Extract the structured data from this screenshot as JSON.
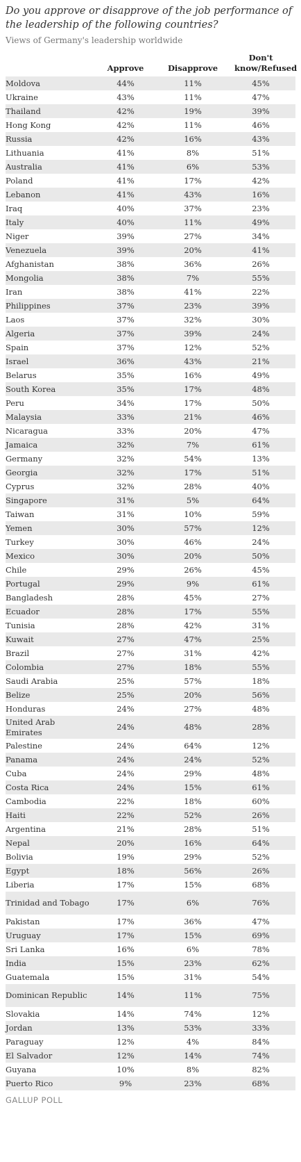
{
  "chart_data": {
    "type": "table",
    "title": "Do you approve or disapprove of the job performance of the leadership of the following countries?",
    "subtitle": "Views of Germany's leadership worldwide",
    "columns": [
      "Approve",
      "Disapprove",
      "Don't know/Refused"
    ],
    "rows": [
      {
        "country": "Moldova",
        "approve": "44%",
        "disapprove": "11%",
        "dk": "45%"
      },
      {
        "country": "Ukraine",
        "approve": "43%",
        "disapprove": "11%",
        "dk": "47%"
      },
      {
        "country": "Thailand",
        "approve": "42%",
        "disapprove": "19%",
        "dk": "39%"
      },
      {
        "country": "Hong Kong",
        "approve": "42%",
        "disapprove": "11%",
        "dk": "46%"
      },
      {
        "country": "Russia",
        "approve": "42%",
        "disapprove": "16%",
        "dk": "43%"
      },
      {
        "country": "Lithuania",
        "approve": "41%",
        "disapprove": "8%",
        "dk": "51%"
      },
      {
        "country": "Australia",
        "approve": "41%",
        "disapprove": "6%",
        "dk": "53%"
      },
      {
        "country": "Poland",
        "approve": "41%",
        "disapprove": "17%",
        "dk": "42%"
      },
      {
        "country": "Lebanon",
        "approve": "41%",
        "disapprove": "43%",
        "dk": "16%"
      },
      {
        "country": "Iraq",
        "approve": "40%",
        "disapprove": "37%",
        "dk": "23%"
      },
      {
        "country": "Italy",
        "approve": "40%",
        "disapprove": "11%",
        "dk": "49%"
      },
      {
        "country": "Niger",
        "approve": "39%",
        "disapprove": "27%",
        "dk": "34%"
      },
      {
        "country": "Venezuela",
        "approve": "39%",
        "disapprove": "20%",
        "dk": "41%"
      },
      {
        "country": "Afghanistan",
        "approve": "38%",
        "disapprove": "36%",
        "dk": "26%"
      },
      {
        "country": "Mongolia",
        "approve": "38%",
        "disapprove": "7%",
        "dk": "55%"
      },
      {
        "country": "Iran",
        "approve": "38%",
        "disapprove": "41%",
        "dk": "22%"
      },
      {
        "country": "Philippines",
        "approve": "37%",
        "disapprove": "23%",
        "dk": "39%"
      },
      {
        "country": "Laos",
        "approve": "37%",
        "disapprove": "32%",
        "dk": "30%"
      },
      {
        "country": "Algeria",
        "approve": "37%",
        "disapprove": "39%",
        "dk": "24%"
      },
      {
        "country": "Spain",
        "approve": "37%",
        "disapprove": "12%",
        "dk": "52%"
      },
      {
        "country": "Israel",
        "approve": "36%",
        "disapprove": "43%",
        "dk": "21%"
      },
      {
        "country": "Belarus",
        "approve": "35%",
        "disapprove": "16%",
        "dk": "49%"
      },
      {
        "country": "South Korea",
        "approve": "35%",
        "disapprove": "17%",
        "dk": "48%"
      },
      {
        "country": "Peru",
        "approve": "34%",
        "disapprove": "17%",
        "dk": "50%"
      },
      {
        "country": "Malaysia",
        "approve": "33%",
        "disapprove": "21%",
        "dk": "46%"
      },
      {
        "country": "Nicaragua",
        "approve": "33%",
        "disapprove": "20%",
        "dk": "47%"
      },
      {
        "country": "Jamaica",
        "approve": "32%",
        "disapprove": "7%",
        "dk": "61%"
      },
      {
        "country": "Germany",
        "approve": "32%",
        "disapprove": "54%",
        "dk": "13%"
      },
      {
        "country": "Georgia",
        "approve": "32%",
        "disapprove": "17%",
        "dk": "51%"
      },
      {
        "country": "Cyprus",
        "approve": "32%",
        "disapprove": "28%",
        "dk": "40%"
      },
      {
        "country": "Singapore",
        "approve": "31%",
        "disapprove": "5%",
        "dk": "64%"
      },
      {
        "country": "Taiwan",
        "approve": "31%",
        "disapprove": "10%",
        "dk": "59%"
      },
      {
        "country": "Yemen",
        "approve": "30%",
        "disapprove": "57%",
        "dk": "12%"
      },
      {
        "country": "Turkey",
        "approve": "30%",
        "disapprove": "46%",
        "dk": "24%"
      },
      {
        "country": "Mexico",
        "approve": "30%",
        "disapprove": "20%",
        "dk": "50%"
      },
      {
        "country": "Chile",
        "approve": "29%",
        "disapprove": "26%",
        "dk": "45%"
      },
      {
        "country": "Portugal",
        "approve": "29%",
        "disapprove": "9%",
        "dk": "61%"
      },
      {
        "country": "Bangladesh",
        "approve": "28%",
        "disapprove": "45%",
        "dk": "27%"
      },
      {
        "country": "Ecuador",
        "approve": "28%",
        "disapprove": "17%",
        "dk": "55%"
      },
      {
        "country": "Tunisia",
        "approve": "28%",
        "disapprove": "42%",
        "dk": "31%"
      },
      {
        "country": "Kuwait",
        "approve": "27%",
        "disapprove": "47%",
        "dk": "25%"
      },
      {
        "country": "Brazil",
        "approve": "27%",
        "disapprove": "31%",
        "dk": "42%"
      },
      {
        "country": "Colombia",
        "approve": "27%",
        "disapprove": "18%",
        "dk": "55%"
      },
      {
        "country": "Saudi Arabia",
        "approve": "25%",
        "disapprove": "57%",
        "dk": "18%"
      },
      {
        "country": "Belize",
        "approve": "25%",
        "disapprove": "20%",
        "dk": "56%"
      },
      {
        "country": "Honduras",
        "approve": "24%",
        "disapprove": "27%",
        "dk": "48%"
      },
      {
        "country": "United Arab Emirates",
        "approve": "24%",
        "disapprove": "48%",
        "dk": "28%"
      },
      {
        "country": "Palestine",
        "approve": "24%",
        "disapprove": "64%",
        "dk": "12%"
      },
      {
        "country": "Panama",
        "approve": "24%",
        "disapprove": "24%",
        "dk": "52%"
      },
      {
        "country": "Cuba",
        "approve": "24%",
        "disapprove": "29%",
        "dk": "48%"
      },
      {
        "country": "Costa Rica",
        "approve": "24%",
        "disapprove": "15%",
        "dk": "61%"
      },
      {
        "country": "Cambodia",
        "approve": "22%",
        "disapprove": "18%",
        "dk": "60%"
      },
      {
        "country": "Haiti",
        "approve": "22%",
        "disapprove": "52%",
        "dk": "26%"
      },
      {
        "country": "Argentina",
        "approve": "21%",
        "disapprove": "28%",
        "dk": "51%"
      },
      {
        "country": "Nepal",
        "approve": "20%",
        "disapprove": "16%",
        "dk": "64%"
      },
      {
        "country": "Bolivia",
        "approve": "19%",
        "disapprove": "29%",
        "dk": "52%"
      },
      {
        "country": "Egypt",
        "approve": "18%",
        "disapprove": "56%",
        "dk": "26%"
      },
      {
        "country": "Liberia",
        "approve": "17%",
        "disapprove": "15%",
        "dk": "68%"
      },
      {
        "country": "Trinidad and Tobago",
        "approve": "17%",
        "disapprove": "6%",
        "dk": "76%"
      },
      {
        "country": "Pakistan",
        "approve": "17%",
        "disapprove": "36%",
        "dk": "47%"
      },
      {
        "country": "Uruguay",
        "approve": "17%",
        "disapprove": "15%",
        "dk": "69%"
      },
      {
        "country": "Sri Lanka",
        "approve": "16%",
        "disapprove": "6%",
        "dk": "78%"
      },
      {
        "country": "India",
        "approve": "15%",
        "disapprove": "23%",
        "dk": "62%"
      },
      {
        "country": "Guatemala",
        "approve": "15%",
        "disapprove": "31%",
        "dk": "54%"
      },
      {
        "country": "Dominican Republic",
        "approve": "14%",
        "disapprove": "11%",
        "dk": "75%"
      },
      {
        "country": "Slovakia",
        "approve": "14%",
        "disapprove": "74%",
        "dk": "12%"
      },
      {
        "country": "Jordan",
        "approve": "13%",
        "disapprove": "53%",
        "dk": "33%"
      },
      {
        "country": "Paraguay",
        "approve": "12%",
        "disapprove": "4%",
        "dk": "84%"
      },
      {
        "country": "El Salvador",
        "approve": "12%",
        "disapprove": "14%",
        "dk": "74%"
      },
      {
        "country": "Guyana",
        "approve": "10%",
        "disapprove": "8%",
        "dk": "82%"
      },
      {
        "country": "Puerto Rico",
        "approve": "9%",
        "disapprove": "23%",
        "dk": "68%"
      }
    ]
  },
  "footer": "GALLUP POLL"
}
